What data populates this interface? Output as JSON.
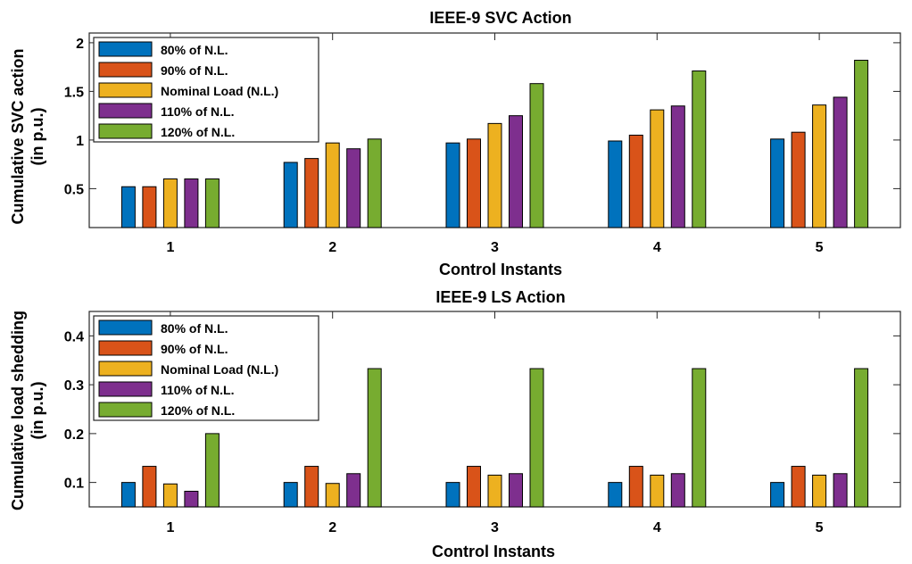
{
  "chart_data": [
    {
      "type": "bar",
      "title": "IEEE-9 SVC Action",
      "xlabel": "Control Instants",
      "ylabel": [
        "Cumulative SVC action",
        "(in p.u.)"
      ],
      "categories": [
        "1",
        "2",
        "3",
        "4",
        "5"
      ],
      "ylim": [
        0.1,
        2.1
      ],
      "yticks": [
        0.5,
        1,
        1.5,
        2
      ],
      "ytick_labels": [
        "0.5",
        "1",
        "1.5",
        "2"
      ],
      "legend_position": "top-left",
      "series": [
        {
          "name": "80% of N.L.",
          "color": "#0072BD",
          "values": [
            0.52,
            0.77,
            0.97,
            0.99,
            1.01
          ]
        },
        {
          "name": "90% of N.L.",
          "color": "#D95319",
          "values": [
            0.52,
            0.81,
            1.01,
            1.05,
            1.08
          ]
        },
        {
          "name": "Nominal Load (N.L.)",
          "color": "#EDB120",
          "values": [
            0.6,
            0.97,
            1.17,
            1.31,
            1.36
          ]
        },
        {
          "name": "110% of N.L.",
          "color": "#7E2F8E",
          "values": [
            0.6,
            0.91,
            1.25,
            1.35,
            1.44
          ]
        },
        {
          "name": "120% of N.L.",
          "color": "#77AC30",
          "values": [
            0.6,
            1.01,
            1.58,
            1.71,
            1.82
          ]
        }
      ]
    },
    {
      "type": "bar",
      "title": "IEEE-9 LS Action",
      "xlabel": "Control Instants",
      "ylabel": [
        "Cumulative load shedding",
        "(in p.u.)"
      ],
      "categories": [
        "1",
        "2",
        "3",
        "4",
        "5"
      ],
      "ylim": [
        0.05,
        0.45
      ],
      "yticks": [
        0.1,
        0.2,
        0.3,
        0.4
      ],
      "ytick_labels": [
        "0.1",
        "0.2",
        "0.3",
        "0.4"
      ],
      "legend_position": "top-left",
      "series": [
        {
          "name": "80% of N.L.",
          "color": "#0072BD",
          "values": [
            0.1,
            0.1,
            0.1,
            0.1,
            0.1
          ]
        },
        {
          "name": "90% of N.L.",
          "color": "#D95319",
          "values": [
            0.133,
            0.133,
            0.133,
            0.133,
            0.133
          ]
        },
        {
          "name": "Nominal Load (N.L.)",
          "color": "#EDB120",
          "values": [
            0.097,
            0.098,
            0.115,
            0.115,
            0.115
          ]
        },
        {
          "name": "110% of N.L.",
          "color": "#7E2F8E",
          "values": [
            0.082,
            0.118,
            0.118,
            0.118,
            0.118
          ]
        },
        {
          "name": "120% of N.L.",
          "color": "#77AC30",
          "values": [
            0.2,
            0.333,
            0.333,
            0.333,
            0.333
          ]
        }
      ]
    }
  ]
}
